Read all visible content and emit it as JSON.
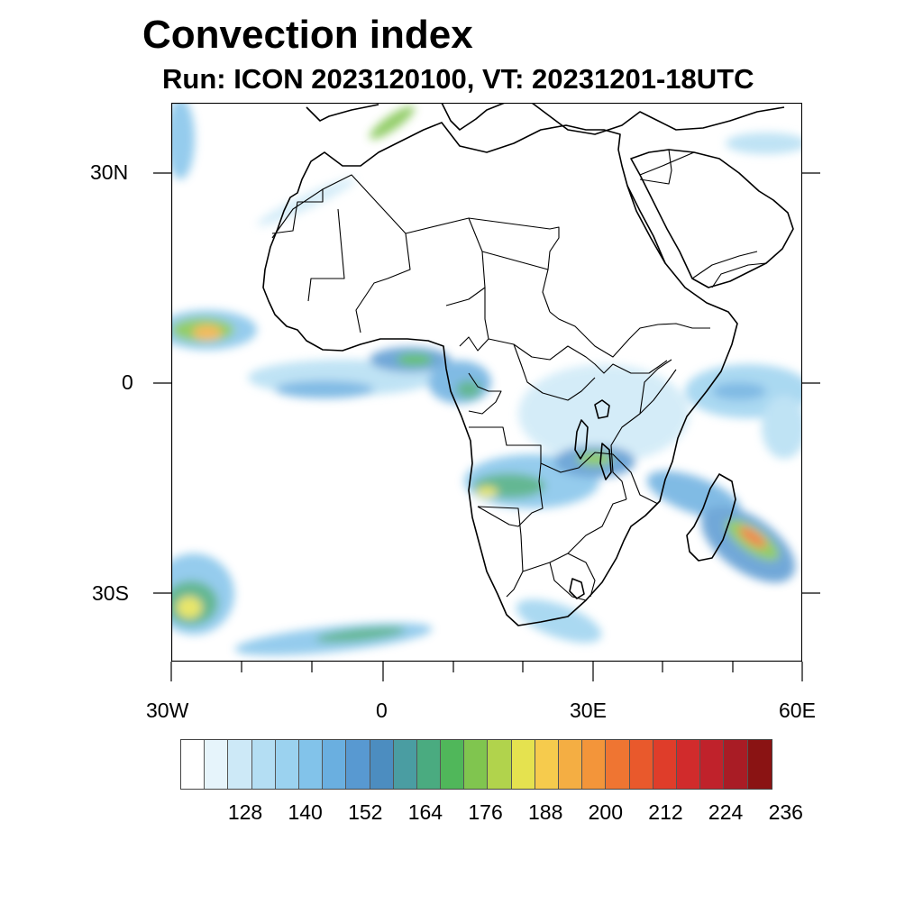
{
  "title": "Convection index",
  "subtitle": "Run: ICON 2023120100,  VT: 20231201-18UTC",
  "axes": {
    "lat_labels": [
      "30N",
      "0",
      "30S"
    ],
    "lon_labels": [
      "30W",
      "0",
      "30E",
      "60E"
    ]
  },
  "colorbar": {
    "colors": [
      "#ffffff",
      "#e6f4fb",
      "#cde9f7",
      "#b4def3",
      "#9bd2ef",
      "#82c3ea",
      "#6aafe0",
      "#5899d1",
      "#4c8dc0",
      "#4a9da2",
      "#4aab80",
      "#50b75a",
      "#80c54f",
      "#b1d34c",
      "#e5e24f",
      "#f6cb4d",
      "#f4ae43",
      "#f3953a",
      "#ef7532",
      "#e9592c",
      "#df3d2a",
      "#d12b2c",
      "#c0222b",
      "#a91c25",
      "#8a1313"
    ],
    "labels": [
      "128",
      "140",
      "152",
      "164",
      "176",
      "188",
      "200",
      "212",
      "224",
      "236"
    ]
  }
}
